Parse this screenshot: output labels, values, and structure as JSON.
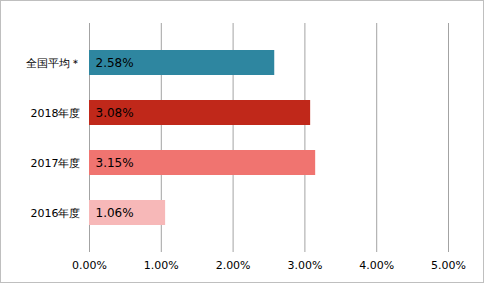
{
  "chart_data": {
    "type": "bar",
    "orientation": "horizontal",
    "categories": [
      "全国平均＊",
      "2018年度",
      "2017年度",
      "2016年度"
    ],
    "values": [
      2.58,
      3.08,
      3.15,
      1.06
    ],
    "value_labels": [
      "2.58%",
      "3.08%",
      "3.15%",
      "1.06%"
    ],
    "colors": [
      "#2e86a0",
      "#c0281a",
      "#f07470",
      "#f7b8b8"
    ],
    "data_labels": true,
    "xlim": [
      0,
      5
    ],
    "xticks": [
      {
        "value": 0,
        "label": "0.00%"
      },
      {
        "value": 1,
        "label": "1.00%"
      },
      {
        "value": 2,
        "label": "2.00%"
      },
      {
        "value": 3,
        "label": "3.00%"
      },
      {
        "value": 4,
        "label": "4.00%"
      },
      {
        "value": 5,
        "label": "5.00%"
      }
    ],
    "grid": true
  }
}
